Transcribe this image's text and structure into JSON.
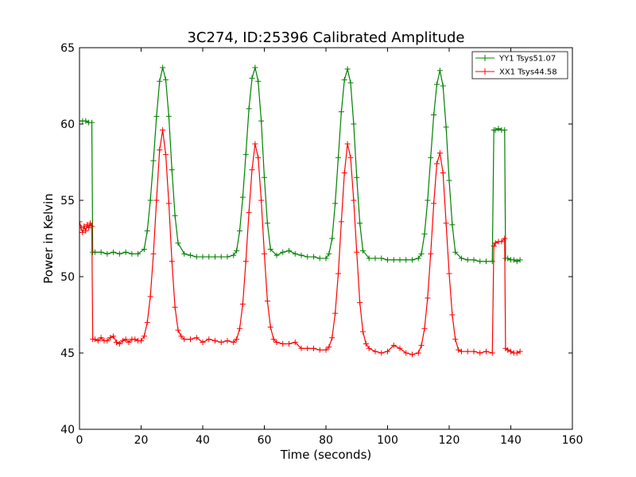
{
  "chart_data": {
    "type": "line",
    "title": "3C274, ID:25396 Calibrated Amplitude",
    "xlabel": "Time (seconds)",
    "ylabel": "Power in Kelvin",
    "xlim": [
      0,
      160
    ],
    "ylim": [
      40,
      65
    ],
    "xticks": [
      0,
      20,
      40,
      60,
      80,
      100,
      120,
      140,
      160
    ],
    "yticks": [
      40,
      45,
      50,
      55,
      60,
      65
    ],
    "xtick_labels": [
      "0",
      "20",
      "40",
      "60",
      "80",
      "100",
      "120",
      "140",
      "160"
    ],
    "ytick_labels": [
      "40",
      "45",
      "50",
      "55",
      "60",
      "65"
    ],
    "grid": false,
    "legend_position": "top-right",
    "marker": "+",
    "series": [
      {
        "name": "YY1 Tsys51.07",
        "color": "#008000",
        "x": [
          0,
          1,
          2,
          3,
          4,
          4.3,
          5,
          7,
          9,
          11,
          13,
          15,
          17,
          19,
          21,
          22,
          23,
          24,
          25,
          26,
          27,
          28,
          29,
          30,
          31,
          32,
          34,
          36,
          38,
          40,
          42,
          44,
          46,
          48,
          50,
          51,
          52,
          53,
          54,
          55,
          56,
          57,
          58,
          59,
          60,
          61,
          62,
          64,
          66,
          68,
          70,
          72,
          74,
          76,
          78,
          80,
          81,
          82,
          83,
          84,
          85,
          86,
          87,
          88,
          89,
          90,
          91,
          92,
          94,
          96,
          98,
          100,
          102,
          104,
          106,
          108,
          110,
          111,
          112,
          113,
          114,
          115,
          116,
          117,
          118,
          119,
          120,
          121,
          122,
          124,
          126,
          128,
          130,
          132,
          134,
          134.5,
          135,
          136,
          137,
          138,
          138.3,
          139,
          140,
          141,
          142,
          143
        ],
        "y": [
          60.2,
          60.2,
          60.2,
          60.1,
          60.1,
          51.6,
          51.6,
          51.6,
          51.5,
          51.6,
          51.5,
          51.6,
          51.5,
          51.5,
          51.8,
          53.0,
          55.0,
          57.6,
          60.5,
          62.8,
          63.7,
          62.9,
          60.5,
          57.0,
          54.0,
          52.2,
          51.5,
          51.4,
          51.3,
          51.3,
          51.3,
          51.3,
          51.3,
          51.3,
          51.4,
          51.7,
          53.0,
          55.2,
          58.0,
          61.0,
          63.0,
          63.7,
          62.8,
          60.2,
          56.5,
          53.5,
          51.8,
          51.4,
          51.6,
          51.7,
          51.5,
          51.4,
          51.3,
          51.3,
          51.2,
          51.2,
          51.5,
          52.5,
          54.8,
          57.8,
          60.8,
          62.9,
          63.6,
          62.7,
          60.0,
          56.5,
          53.5,
          51.7,
          51.2,
          51.2,
          51.2,
          51.1,
          51.1,
          51.1,
          51.1,
          51.1,
          51.2,
          51.5,
          52.8,
          55.0,
          57.8,
          60.6,
          62.6,
          63.5,
          62.5,
          59.8,
          56.3,
          53.4,
          51.6,
          51.2,
          51.1,
          51.1,
          51.0,
          51.0,
          51.0,
          59.6,
          59.6,
          59.7,
          59.6,
          59.6,
          51.2,
          51.2,
          51.1,
          51.1,
          51.0,
          51.1
        ]
      },
      {
        "name": "XX1 Tsys44.58",
        "color": "#ff0000",
        "x": [
          0,
          0.5,
          1,
          1.5,
          2,
          2.5,
          3,
          3.5,
          4,
          4.3,
          5,
          6,
          7,
          8,
          9,
          10,
          11,
          12,
          13,
          14,
          15,
          16,
          17,
          18,
          19,
          20,
          21,
          22,
          23,
          24,
          25,
          26,
          27,
          28,
          29,
          30,
          31,
          32,
          33,
          34,
          36,
          38,
          40,
          42,
          44,
          46,
          48,
          50,
          51,
          52,
          53,
          54,
          55,
          56,
          57,
          58,
          59,
          60,
          61,
          62,
          63,
          64,
          66,
          68,
          70,
          72,
          74,
          76,
          78,
          80,
          81,
          82,
          83,
          84,
          85,
          86,
          87,
          88,
          89,
          90,
          91,
          92,
          93,
          94,
          96,
          98,
          100,
          102,
          104,
          106,
          108,
          110,
          111,
          112,
          113,
          114,
          115,
          116,
          117,
          118,
          119,
          120,
          121,
          122,
          123,
          124,
          126,
          128,
          130,
          132,
          134,
          134.5,
          135,
          136,
          137,
          138,
          138.3,
          139,
          140,
          141,
          142,
          143
        ],
        "y": [
          53.6,
          53.2,
          52.9,
          53.3,
          53.0,
          53.4,
          53.2,
          53.5,
          53.3,
          45.9,
          45.9,
          45.8,
          46.0,
          45.8,
          45.8,
          46.0,
          46.1,
          45.7,
          45.6,
          45.8,
          45.9,
          45.7,
          45.9,
          45.9,
          45.8,
          45.8,
          46.1,
          47.0,
          48.7,
          51.5,
          55.0,
          58.3,
          59.6,
          58.0,
          54.8,
          51.0,
          48.0,
          46.5,
          46.1,
          45.9,
          45.9,
          46.0,
          45.7,
          45.9,
          45.8,
          45.7,
          45.8,
          45.7,
          45.9,
          46.6,
          48.2,
          51.0,
          54.2,
          57.0,
          58.7,
          57.8,
          55.0,
          51.5,
          48.4,
          46.7,
          45.9,
          45.7,
          45.6,
          45.6,
          45.7,
          45.3,
          45.3,
          45.3,
          45.2,
          45.2,
          45.4,
          46.0,
          47.6,
          50.2,
          53.6,
          56.8,
          58.7,
          57.8,
          55.0,
          51.6,
          48.3,
          46.4,
          45.6,
          45.3,
          45.1,
          45.0,
          45.1,
          45.5,
          45.3,
          45.0,
          44.9,
          45.0,
          45.5,
          46.6,
          48.6,
          51.5,
          54.8,
          57.4,
          58.1,
          56.8,
          53.5,
          50.2,
          47.5,
          45.9,
          45.2,
          45.1,
          45.1,
          45.1,
          45.0,
          45.1,
          45.0,
          52.0,
          52.2,
          52.3,
          52.3,
          52.5,
          45.3,
          45.2,
          45.1,
          45.0,
          45.0,
          45.1
        ]
      }
    ]
  }
}
